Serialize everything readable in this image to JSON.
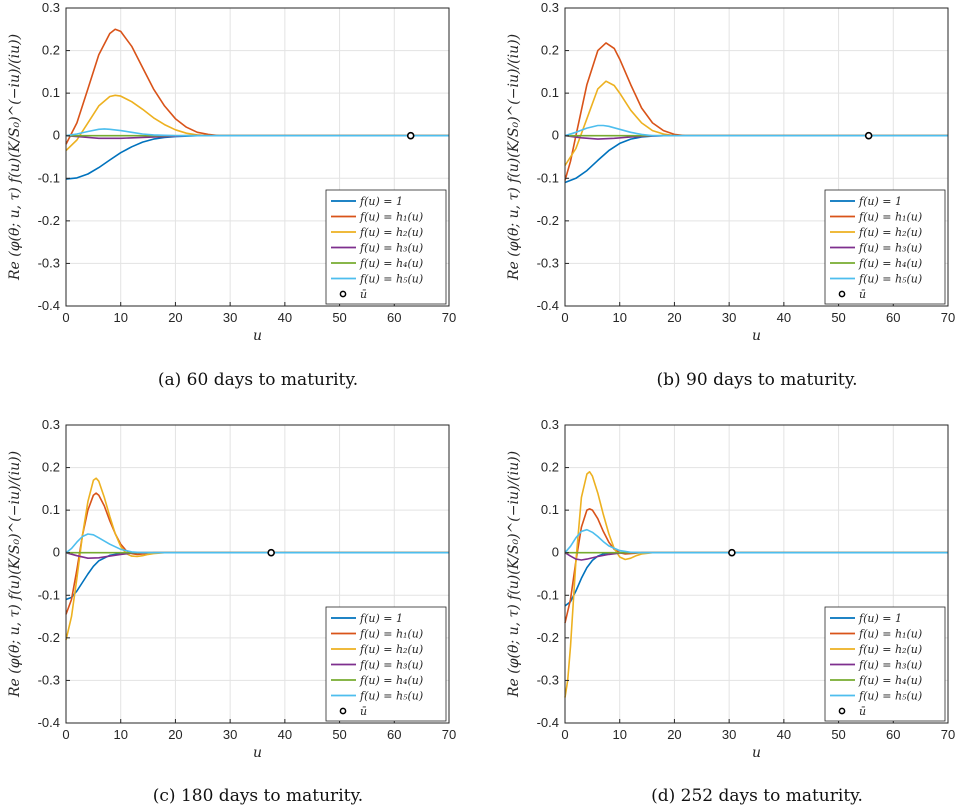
{
  "figure": {
    "ylabel": "Re (φ(θ; u, τ) f(u)(K/S₀)^(−iu)/(iu))",
    "xlabel": "u",
    "legend": [
      "f(u) = 1",
      "f(u) = h₁(u)",
      "f(u) = h₂(u)",
      "f(u) = h₃(u)",
      "f(u) = h₄(u)",
      "f(u) = h₅(u)",
      "ū"
    ],
    "colors": [
      "#0072BD",
      "#D95319",
      "#EDB120",
      "#7E2F8E",
      "#77AC30",
      "#4DBEEE",
      "#000000"
    ]
  },
  "chart_data": [
    {
      "type": "line",
      "caption": "(a) 60 days to maturity.",
      "xlim": [
        0,
        70
      ],
      "ylim": [
        -0.4,
        0.3
      ],
      "xticks": [
        "0",
        "10",
        "20",
        "30",
        "40",
        "50",
        "60",
        "70"
      ],
      "yticks": [
        "0.3",
        "0.2",
        "0.1",
        "0",
        "-0.1",
        "-0.2",
        "-0.3",
        "-0.4"
      ],
      "grid": true,
      "legend_position": "bottom-right",
      "marker": {
        "x": 63,
        "y": 0
      },
      "series": [
        {
          "name": "f(u) = 1",
          "x": [
            0,
            2,
            4,
            6,
            8,
            10,
            12,
            14,
            16,
            18,
            20,
            24,
            28,
            70
          ],
          "y": [
            -0.102,
            -0.099,
            -0.09,
            -0.075,
            -0.057,
            -0.04,
            -0.026,
            -0.015,
            -0.008,
            -0.004,
            -0.002,
            0,
            0,
            0
          ]
        },
        {
          "name": "f(u) = h₁(u)",
          "x": [
            0,
            2,
            4,
            6,
            8,
            9,
            10,
            12,
            14,
            16,
            18,
            20,
            22,
            24,
            26,
            28,
            70
          ],
          "y": [
            -0.02,
            0.03,
            0.11,
            0.19,
            0.24,
            0.25,
            0.245,
            0.21,
            0.16,
            0.11,
            0.07,
            0.04,
            0.02,
            0.008,
            0.003,
            0,
            0
          ]
        },
        {
          "name": "f(u) = h₂(u)",
          "x": [
            0,
            2,
            4,
            6,
            8,
            9,
            10,
            12,
            14,
            16,
            18,
            20,
            22,
            24,
            26,
            70
          ],
          "y": [
            -0.035,
            -0.01,
            0.03,
            0.07,
            0.092,
            0.095,
            0.093,
            0.08,
            0.062,
            0.042,
            0.026,
            0.014,
            0.006,
            0.002,
            0,
            0
          ]
        },
        {
          "name": "f(u) = h₃(u)",
          "x": [
            0,
            3,
            6,
            10,
            14,
            18,
            22,
            70
          ],
          "y": [
            0,
            -0.003,
            -0.006,
            -0.006,
            -0.004,
            -0.002,
            0,
            0
          ]
        },
        {
          "name": "f(u) = h₄(u)",
          "x": [
            0,
            70
          ],
          "y": [
            0,
            0
          ]
        },
        {
          "name": "f(u) = h₅(u)",
          "x": [
            0,
            2,
            4,
            6,
            7,
            8,
            10,
            12,
            14,
            16,
            18,
            20,
            70
          ],
          "y": [
            0,
            0.004,
            0.01,
            0.015,
            0.016,
            0.015,
            0.012,
            0.008,
            0.004,
            0.002,
            0.001,
            0,
            0
          ]
        }
      ]
    },
    {
      "type": "line",
      "caption": "(b) 90 days to maturity.",
      "xlim": [
        0,
        70
      ],
      "ylim": [
        -0.4,
        0.3
      ],
      "xticks": [
        "0",
        "10",
        "20",
        "30",
        "40",
        "50",
        "60",
        "70"
      ],
      "yticks": [
        "0.3",
        "0.2",
        "0.1",
        "0",
        "-0.1",
        "-0.2",
        "-0.3",
        "-0.4"
      ],
      "grid": true,
      "legend_position": "bottom-right",
      "marker": {
        "x": 55.5,
        "y": 0
      },
      "series": [
        {
          "name": "f(u) = 1",
          "x": [
            0,
            2,
            4,
            6,
            8,
            10,
            12,
            14,
            16,
            18,
            20,
            70
          ],
          "y": [
            -0.11,
            -0.1,
            -0.082,
            -0.058,
            -0.035,
            -0.018,
            -0.008,
            -0.003,
            -0.001,
            0,
            0,
            0
          ]
        },
        {
          "name": "f(u) = h₁(u)",
          "x": [
            0,
            1,
            2,
            4,
            6,
            7.5,
            9,
            10,
            12,
            14,
            16,
            18,
            20,
            22,
            70
          ],
          "y": [
            -0.105,
            -0.06,
            0,
            0.12,
            0.2,
            0.218,
            0.205,
            0.18,
            0.12,
            0.065,
            0.03,
            0.012,
            0.003,
            0,
            0
          ]
        },
        {
          "name": "f(u) = h₂(u)",
          "x": [
            0,
            2,
            4,
            6,
            7.5,
            9,
            10,
            12,
            14,
            16,
            18,
            20,
            70
          ],
          "y": [
            -0.07,
            -0.03,
            0.04,
            0.11,
            0.128,
            0.118,
            0.1,
            0.06,
            0.03,
            0.012,
            0.004,
            0,
            0
          ]
        },
        {
          "name": "f(u) = h₃(u)",
          "x": [
            0,
            3,
            6,
            9,
            12,
            15,
            18,
            70
          ],
          "y": [
            0,
            -0.005,
            -0.008,
            -0.006,
            -0.003,
            -0.001,
            0,
            0
          ]
        },
        {
          "name": "f(u) = h₄(u)",
          "x": [
            0,
            70
          ],
          "y": [
            0,
            0
          ]
        },
        {
          "name": "f(u) = h₅(u)",
          "x": [
            0,
            2,
            4,
            6,
            7,
            8,
            10,
            12,
            14,
            16,
            70
          ],
          "y": [
            0,
            0.008,
            0.018,
            0.024,
            0.024,
            0.022,
            0.015,
            0.008,
            0.003,
            0,
            0
          ]
        }
      ]
    },
    {
      "type": "line",
      "caption": "(c) 180 days to maturity.",
      "xlim": [
        0,
        70
      ],
      "ylim": [
        -0.4,
        0.3
      ],
      "xticks": [
        "0",
        "10",
        "20",
        "30",
        "40",
        "50",
        "60",
        "70"
      ],
      "yticks": [
        "0.3",
        "0.2",
        "0.1",
        "0",
        "-0.1",
        "-0.2",
        "-0.3",
        "-0.4"
      ],
      "grid": true,
      "legend_position": "bottom-right",
      "marker": {
        "x": 37.5,
        "y": 0
      },
      "series": [
        {
          "name": "f(u) = 1",
          "x": [
            0,
            1,
            2,
            3,
            4,
            5,
            6,
            8,
            10,
            12,
            14,
            70
          ],
          "y": [
            -0.11,
            -0.105,
            -0.09,
            -0.07,
            -0.05,
            -0.032,
            -0.019,
            -0.006,
            -0.002,
            0,
            0,
            0
          ]
        },
        {
          "name": "f(u) = h₁(u)",
          "x": [
            0,
            1,
            2,
            3,
            4,
            5,
            5.5,
            6,
            7,
            8,
            9,
            10,
            11,
            12,
            13,
            14,
            16,
            70
          ],
          "y": [
            -0.145,
            -0.11,
            -0.04,
            0.04,
            0.1,
            0.135,
            0.14,
            0.135,
            0.11,
            0.075,
            0.045,
            0.02,
            0.005,
            -0.002,
            -0.004,
            -0.003,
            0,
            0
          ]
        },
        {
          "name": "f(u) = h₂(u)",
          "x": [
            0,
            1,
            2,
            3,
            4,
            5,
            5.5,
            6,
            7,
            8,
            9,
            10,
            11,
            12,
            13,
            14,
            15,
            16,
            18,
            70
          ],
          "y": [
            -0.205,
            -0.15,
            -0.06,
            0.04,
            0.12,
            0.17,
            0.175,
            0.168,
            0.13,
            0.085,
            0.045,
            0.015,
            -0.002,
            -0.008,
            -0.009,
            -0.007,
            -0.004,
            -0.002,
            0,
            0
          ]
        },
        {
          "name": "f(u) = h₃(u)",
          "x": [
            0,
            2,
            4,
            6,
            8,
            10,
            12,
            14,
            16,
            70
          ],
          "y": [
            0,
            -0.007,
            -0.013,
            -0.012,
            -0.008,
            -0.004,
            -0.001,
            0,
            0,
            0
          ]
        },
        {
          "name": "f(u) = h₄(u)",
          "x": [
            0,
            70
          ],
          "y": [
            0,
            0
          ]
        },
        {
          "name": "f(u) = h₅(u)",
          "x": [
            0,
            1,
            2,
            3,
            4,
            5,
            6,
            8,
            10,
            12,
            14,
            16,
            70
          ],
          "y": [
            0,
            0.01,
            0.025,
            0.038,
            0.044,
            0.042,
            0.035,
            0.02,
            0.008,
            0.002,
            0,
            0,
            0
          ]
        }
      ]
    },
    {
      "type": "line",
      "caption": "(d) 252 days to maturity.",
      "xlim": [
        0,
        70
      ],
      "ylim": [
        -0.4,
        0.3
      ],
      "xticks": [
        "0",
        "10",
        "20",
        "30",
        "40",
        "50",
        "60",
        "70"
      ],
      "yticks": [
        "0.3",
        "0.2",
        "0.1",
        "0",
        "-0.1",
        "-0.2",
        "-0.3",
        "-0.4"
      ],
      "grid": true,
      "legend_position": "bottom-right",
      "marker": {
        "x": 30.5,
        "y": 0
      },
      "series": [
        {
          "name": "f(u) = 1",
          "x": [
            0,
            1,
            2,
            3,
            4,
            5,
            6,
            7,
            8,
            10,
            12,
            70
          ],
          "y": [
            -0.125,
            -0.115,
            -0.09,
            -0.06,
            -0.035,
            -0.018,
            -0.008,
            -0.003,
            -0.001,
            0,
            0,
            0
          ]
        },
        {
          "name": "f(u) = h₁(u)",
          "x": [
            0,
            1,
            2,
            3,
            4,
            4.5,
            5,
            6,
            7,
            8,
            9,
            10,
            11,
            12,
            14,
            70
          ],
          "y": [
            -0.165,
            -0.11,
            -0.02,
            0.06,
            0.1,
            0.103,
            0.1,
            0.08,
            0.05,
            0.025,
            0.008,
            0,
            -0.003,
            -0.002,
            0,
            0
          ]
        },
        {
          "name": "f(u) = h₂(u)",
          "x": [
            0,
            0.5,
            1,
            2,
            3,
            4,
            4.5,
            5,
            6,
            7,
            8,
            9,
            10,
            11,
            12,
            13,
            14,
            16,
            70
          ],
          "y": [
            -0.34,
            -0.3,
            -0.22,
            -0.02,
            0.13,
            0.185,
            0.19,
            0.18,
            0.14,
            0.09,
            0.045,
            0.01,
            -0.01,
            -0.016,
            -0.013,
            -0.007,
            -0.003,
            0,
            0
          ]
        },
        {
          "name": "f(u) = h₃(u)",
          "x": [
            0,
            1,
            2,
            3,
            4,
            6,
            8,
            10,
            12,
            70
          ],
          "y": [
            0,
            -0.008,
            -0.015,
            -0.017,
            -0.015,
            -0.009,
            -0.004,
            -0.001,
            0,
            0
          ]
        },
        {
          "name": "f(u) = h₄(u)",
          "x": [
            0,
            70
          ],
          "y": [
            0,
            0
          ]
        },
        {
          "name": "f(u) = h₅(u)",
          "x": [
            0,
            1,
            2,
            3,
            4,
            5,
            6,
            7,
            8,
            10,
            12,
            14,
            70
          ],
          "y": [
            0,
            0.015,
            0.035,
            0.05,
            0.054,
            0.048,
            0.038,
            0.026,
            0.016,
            0.005,
            0.001,
            0,
            0
          ]
        }
      ]
    }
  ]
}
